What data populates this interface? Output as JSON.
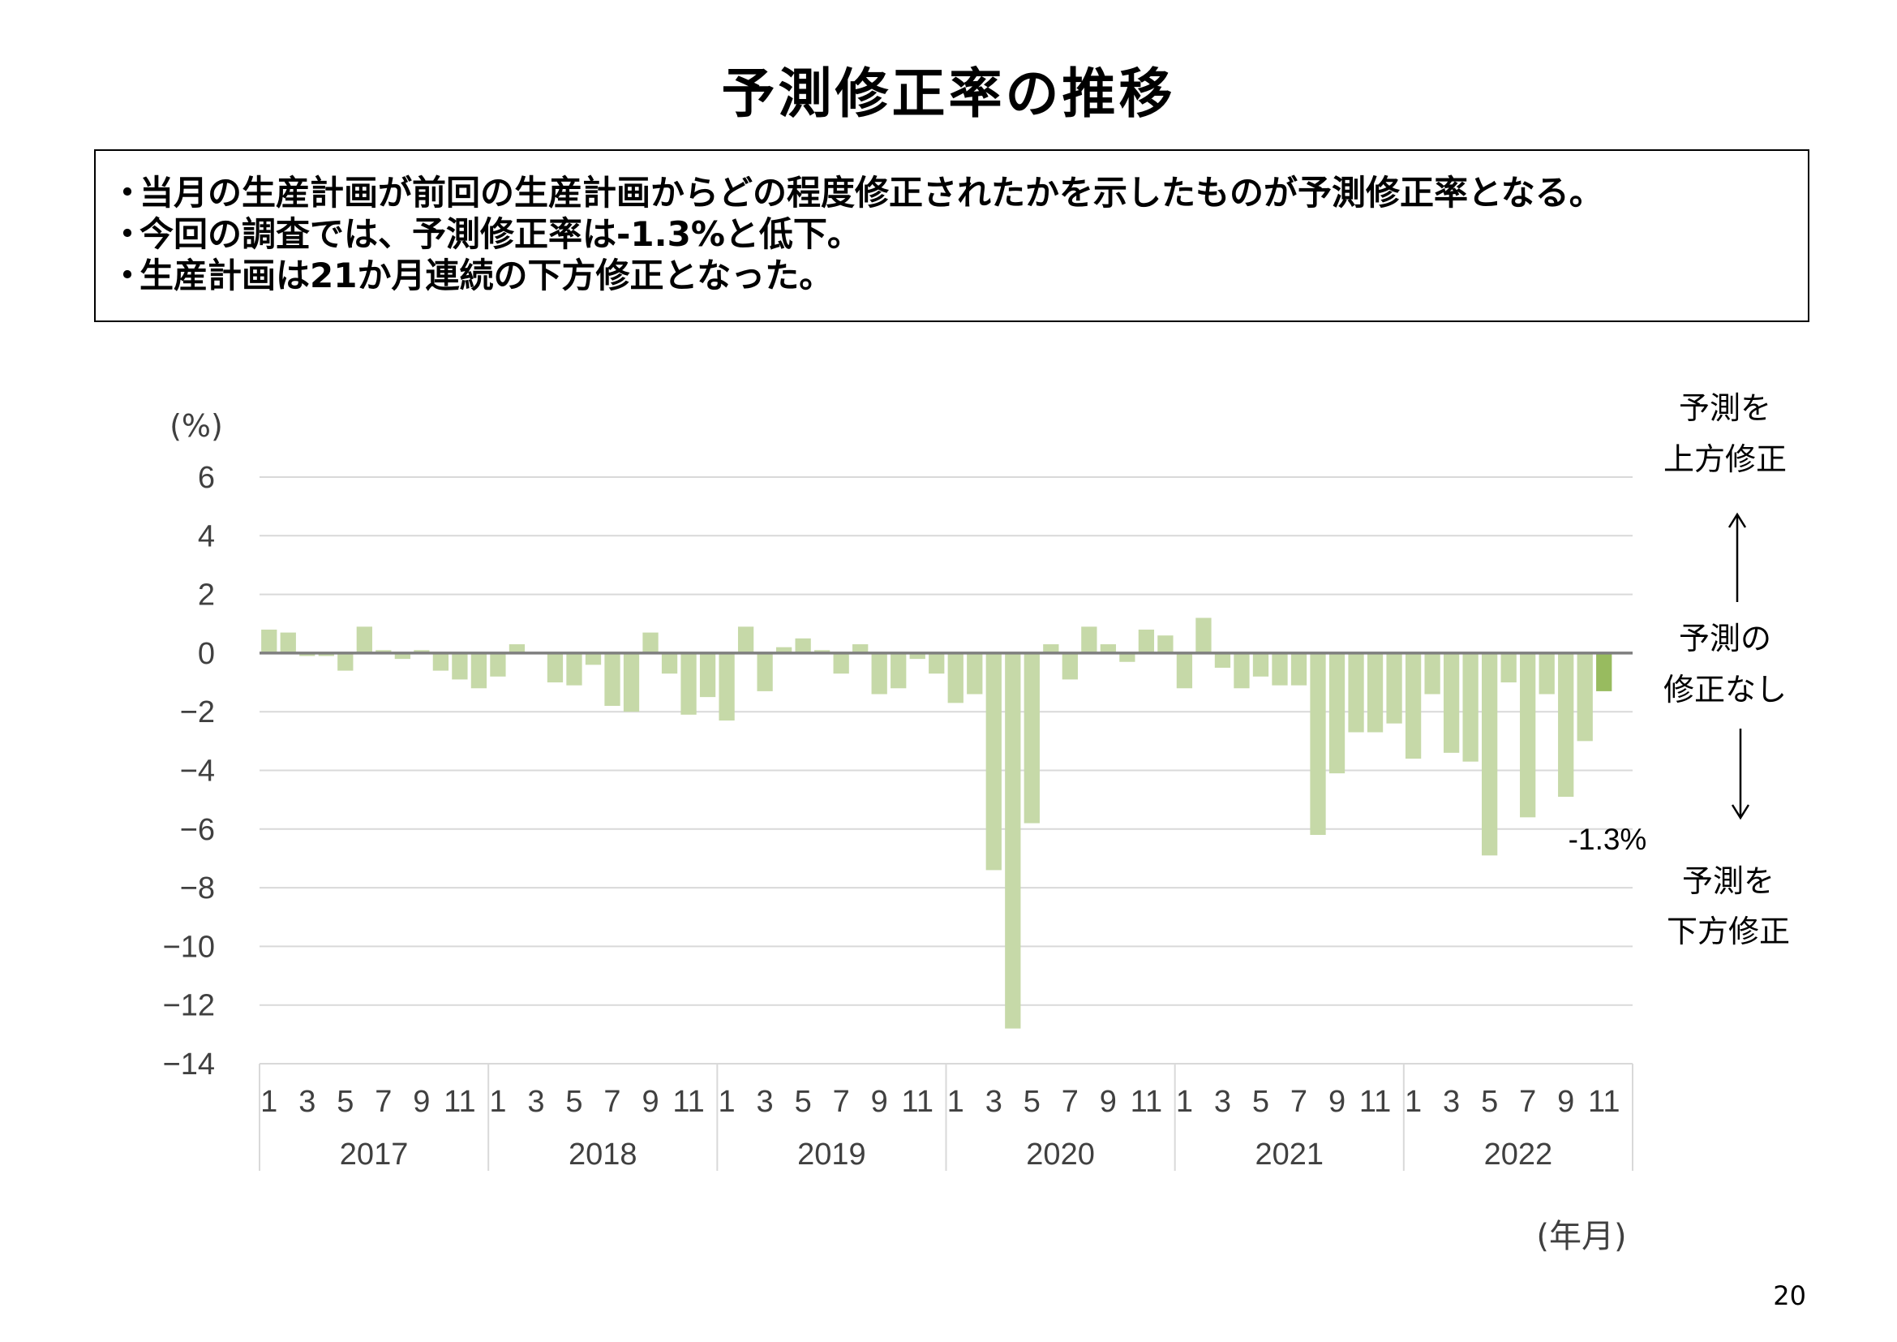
{
  "page": {
    "title": "予測修正率の推移",
    "page_number": "20"
  },
  "summary_bullets": [
    "当月の生産計画が前回の生産計画からどの程度修正されたかを示したものが予測修正率となる。",
    "今回の調査では、予測修正率は-1.3%と低下。",
    "生産計画は21か月連続の下方修正となった。"
  ],
  "bullet_marker": "・",
  "side_labels": {
    "upward_line1": "予測を",
    "upward_line2": "上方修正",
    "none_line1": "予測の",
    "none_line2": "修正なし",
    "downward_line1": "予測を",
    "downward_line2": "下方修正"
  },
  "colors": {
    "bar": "#c6d9a8",
    "bar_latest": "#98bb5f",
    "grid": "#d9d9d9",
    "zero_line": "#7f7f7f"
  },
  "chart_data": {
    "type": "bar",
    "ylabel": "(%)",
    "xlabel": "(年月)",
    "ylim": [
      -14,
      6
    ],
    "yticks": [
      6,
      4,
      2,
      0,
      -2,
      -4,
      -6,
      -8,
      -10,
      -12,
      -14
    ],
    "ytick_labels": [
      "6",
      "4",
      "2",
      "0",
      "−2",
      "−4",
      "−6",
      "−8",
      "−10",
      "−12",
      "−14"
    ],
    "years": [
      "2017",
      "2018",
      "2019",
      "2020",
      "2021",
      "2022"
    ],
    "month_tick_labels": [
      "1",
      "3",
      "5",
      "7",
      "9",
      "11"
    ],
    "months_per_year": 12,
    "latest_label": "-1.3%",
    "values": [
      0.8,
      0.7,
      -0.1,
      -0.1,
      -0.6,
      0.9,
      0.1,
      -0.2,
      0.1,
      -0.6,
      -0.9,
      -1.2,
      -0.8,
      0.3,
      0.0,
      -1.0,
      -1.1,
      -0.4,
      -1.8,
      -2.0,
      0.7,
      -0.7,
      -2.1,
      -1.5,
      -2.3,
      0.9,
      -1.3,
      0.2,
      0.5,
      0.1,
      -0.7,
      0.3,
      -1.4,
      -1.2,
      -0.2,
      -0.7,
      -1.7,
      -1.4,
      -7.4,
      -12.8,
      -5.8,
      0.3,
      -0.9,
      0.9,
      0.3,
      -0.3,
      0.8,
      0.6,
      -1.2,
      1.2,
      -0.5,
      -1.2,
      -0.8,
      -1.1,
      -1.1,
      -6.2,
      -4.1,
      -2.7,
      -2.7,
      -2.4,
      -3.6,
      -1.4,
      -3.4,
      -3.7,
      -6.9,
      -1.0,
      -5.6,
      -1.4,
      -4.9,
      -3.0,
      -1.3
    ]
  }
}
